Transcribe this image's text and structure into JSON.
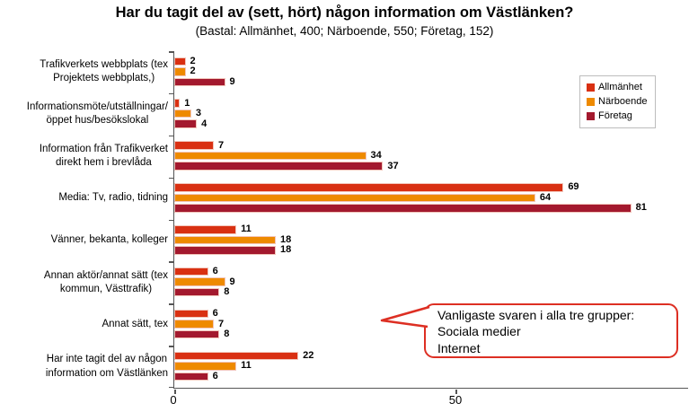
{
  "header": {
    "title": "Har du tagit del av (sett, hört) någon information om Västlänken?",
    "subtitle": "(Bastal: Allmänhet, 400; Närboende, 550; Företag, 152)"
  },
  "chart_data": {
    "type": "bar",
    "orientation": "horizontal",
    "categories": [
      [
        "Trafikverkets webbplats (tex",
        "Projektets webbplats,)"
      ],
      [
        "Informationsmöte/utställningar/",
        "öppet hus/besökslokal"
      ],
      [
        "Information från Trafikverket",
        "direkt hem i brevlåda"
      ],
      [
        "Media: Tv, radio, tidning"
      ],
      [
        "Vänner, bekanta, kolleger"
      ],
      [
        "Annan aktör/annat sätt (tex",
        "kommun, Västtrafik)"
      ],
      [
        "Annat sätt, tex"
      ],
      [
        "Har inte tagit del av någon",
        "information om Västlänken"
      ]
    ],
    "series": [
      {
        "name": "Allmänhet",
        "color": "#D93012",
        "values": [
          2,
          1,
          7,
          69,
          11,
          6,
          6,
          22
        ]
      },
      {
        "name": "Närboende",
        "color": "#EE8A00",
        "values": [
          2,
          3,
          34,
          64,
          18,
          9,
          7,
          11
        ]
      },
      {
        "name": "Företag",
        "color": "#A3192E",
        "values": [
          9,
          4,
          37,
          81,
          18,
          8,
          8,
          6
        ]
      }
    ],
    "x_ticks": [
      0,
      50
    ],
    "xlim": [
      0,
      91
    ],
    "value_labels": true,
    "grid": false,
    "legend_position": "upper right"
  },
  "annotation": {
    "lines": [
      "Vanligaste svaren i alla tre grupper:",
      "Sociala medier",
      "Internet"
    ],
    "border_color": "#dd2f23"
  }
}
